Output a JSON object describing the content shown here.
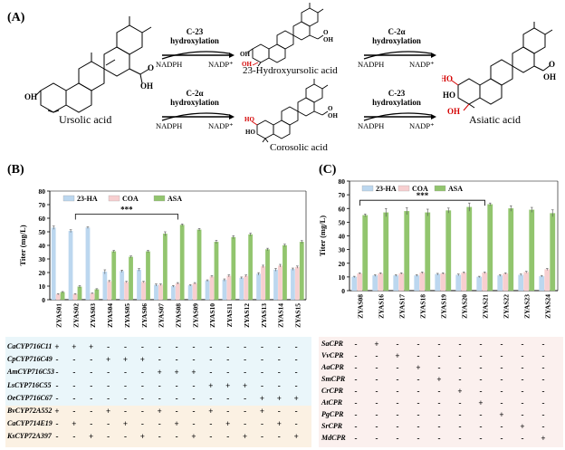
{
  "panel_labels": {
    "a": "(A)",
    "b": "(B)",
    "c": "(C)"
  },
  "scheme": {
    "reactions": [
      {
        "name": "C-23 hydroxylation",
        "line1": "C-23",
        "line2": "hydroxylation",
        "left": "NADPH",
        "right": "NADP⁺"
      },
      {
        "name": "C-2α hydroxylation",
        "line1": "C-2α",
        "line2": "hydroxylation",
        "left": "NADPH",
        "right": "NADP⁺"
      },
      {
        "name": "C-2α hydroxylation",
        "line1": "C-2α",
        "line2": "hydroxylation",
        "left": "NADPH",
        "right": "NADP⁺"
      },
      {
        "name": "C-23 hydroxylation",
        "line1": "C-23",
        "line2": "hydroxylation",
        "left": "NADPH",
        "right": "NADP⁺"
      }
    ],
    "compounds": {
      "ursolic": "Ursolic acid",
      "hydroxy": "23-Hydroxyursolic acid",
      "corosolic": "Corosolic acid",
      "asiatic": "Asiatic acid"
    },
    "groups": {
      "oh": "OH",
      "ho": "HO",
      "o": "O"
    }
  },
  "chart_data": [
    {
      "type": "bar",
      "panel": "(B)",
      "ylabel": "Titer (mg/L)",
      "ylim": [
        0,
        80
      ],
      "yticks": [
        0,
        10,
        20,
        30,
        40,
        50,
        60,
        70,
        80
      ],
      "categories": [
        "ZYAS01",
        "ZYAS02",
        "ZYAS03",
        "ZYAS04",
        "ZYAS05",
        "ZYAS06",
        "ZYAS07",
        "ZYAS08",
        "ZYAS09",
        "ZYAS10",
        "ZYAS11",
        "ZYAS12",
        "ZYAS13",
        "ZYAS14",
        "ZYAS15"
      ],
      "series": [
        {
          "name": "23-HA",
          "color": "#bcd7ef",
          "values": [
            53.0,
            50.5,
            53.0,
            20.5,
            21.0,
            22.0,
            10.8,
            9.8,
            10.5,
            14.0,
            14.5,
            16.0,
            19.0,
            22.0,
            22.5
          ],
          "errors": [
            1.2,
            1.0,
            0.6,
            1.5,
            0.8,
            0.9,
            0.8,
            0.6,
            0.5,
            0.6,
            0.8,
            0.7,
            0.9,
            1.0,
            0.8
          ]
        },
        {
          "name": "COA",
          "color": "#f7cfd0",
          "values": [
            4.0,
            4.0,
            4.5,
            13.5,
            13.0,
            13.0,
            11.0,
            12.0,
            12.0,
            17.0,
            17.5,
            17.5,
            24.5,
            25.0,
            24.0
          ],
          "errors": [
            0.4,
            0.5,
            0.4,
            0.6,
            0.5,
            0.5,
            0.6,
            0.6,
            0.6,
            0.7,
            0.8,
            0.7,
            0.9,
            1.0,
            0.8
          ]
        },
        {
          "name": "ASA",
          "color": "#92c56e",
          "values": [
            5.5,
            9.5,
            7.5,
            35.5,
            31.5,
            35.5,
            48.5,
            55.0,
            51.5,
            42.5,
            46.0,
            48.0,
            37.0,
            40.0,
            42.5
          ],
          "errors": [
            0.5,
            0.8,
            0.6,
            0.8,
            0.7,
            0.8,
            1.5,
            0.8,
            0.9,
            1.2,
            1.1,
            1.0,
            0.9,
            0.9,
            1.0
          ]
        }
      ],
      "significance": {
        "label": "***",
        "from": "ZYAS02",
        "to": "ZYAS08"
      },
      "legend": "top"
    },
    {
      "type": "bar",
      "panel": "(C)",
      "ylabel": "Titer (mg/L)",
      "ylim": [
        0,
        80
      ],
      "yticks": [
        0,
        10,
        20,
        30,
        40,
        50,
        60,
        70,
        80
      ],
      "categories": [
        "ZYAS08",
        "ZYAS16",
        "ZYAS17",
        "ZYAS18",
        "ZYAS19",
        "ZYAS20",
        "ZYAS21",
        "ZYAS22",
        "ZYAS23",
        "ZYAS24"
      ],
      "series": [
        {
          "name": "23-HA",
          "color": "#bcd7ef",
          "values": [
            10.0,
            11.0,
            11.0,
            11.0,
            12.0,
            11.5,
            10.0,
            11.0,
            11.5,
            10.5
          ],
          "errors": [
            0.5,
            0.6,
            0.6,
            0.6,
            0.6,
            0.6,
            0.5,
            0.6,
            0.6,
            0.6
          ]
        },
        {
          "name": "COA",
          "color": "#f7cfd0",
          "values": [
            12.5,
            12.5,
            12.5,
            13.0,
            12.5,
            13.0,
            13.0,
            12.5,
            13.5,
            15.5
          ],
          "errors": [
            0.5,
            0.5,
            0.5,
            0.6,
            0.5,
            0.6,
            0.6,
            0.5,
            0.6,
            0.7
          ]
        },
        {
          "name": "ASA",
          "color": "#92c56e",
          "values": [
            55.0,
            57.0,
            58.0,
            57.0,
            58.5,
            61.0,
            63.0,
            60.0,
            59.0,
            56.5
          ],
          "errors": [
            1.0,
            3.0,
            2.5,
            2.5,
            1.8,
            3.0,
            1.0,
            2.0,
            1.8,
            2.5
          ]
        }
      ],
      "significance": {
        "label": "***",
        "from": "ZYAS08",
        "to": "ZYAS21"
      },
      "legend": "top"
    }
  ],
  "table_b": {
    "rows": [
      {
        "name": "CaCYP716C11",
        "marks": [
          "+",
          "+",
          "+",
          "-",
          "-",
          "-",
          "-",
          "-",
          "-",
          "-",
          "-",
          "-",
          "-",
          "-",
          "-"
        ]
      },
      {
        "name": "CpCYP716C49",
        "marks": [
          "-",
          "-",
          "-",
          "+",
          "+",
          "+",
          "-",
          "-",
          "-",
          "-",
          "-",
          "-",
          "-",
          "-",
          "-"
        ]
      },
      {
        "name": "AmCYP716C53",
        "marks": [
          "-",
          "-",
          "-",
          "-",
          "-",
          "-",
          "+",
          "+",
          "+",
          "-",
          "-",
          "-",
          "-",
          "-",
          "-"
        ]
      },
      {
        "name": "LsCYP716C55",
        "marks": [
          "-",
          "-",
          "-",
          "-",
          "-",
          "-",
          "-",
          "-",
          "-",
          "+",
          "+",
          "+",
          "-",
          "-",
          "-"
        ]
      },
      {
        "name": "OeCYP716C67",
        "marks": [
          "-",
          "-",
          "-",
          "-",
          "-",
          "-",
          "-",
          "-",
          "-",
          "-",
          "-",
          "-",
          "+",
          "+",
          "+"
        ]
      },
      {
        "name": "BvCYP72A552",
        "marks": [
          "+",
          "-",
          "-",
          "+",
          "-",
          "-",
          "+",
          "-",
          "-",
          "+",
          "-",
          "-",
          "+",
          "-",
          "-"
        ]
      },
      {
        "name": "CaCYP714E19",
        "marks": [
          "-",
          "+",
          "-",
          "-",
          "+",
          "-",
          "-",
          "+",
          "-",
          "-",
          "+",
          "-",
          "-",
          "+",
          "-"
        ]
      },
      {
        "name": "KsCYP72A397",
        "marks": [
          "-",
          "-",
          "+",
          "-",
          "-",
          "+",
          "-",
          "-",
          "+",
          "-",
          "-",
          "+",
          "-",
          "-",
          "+"
        ]
      }
    ]
  },
  "table_c": {
    "rows": [
      {
        "name": "SaCPR",
        "marks": [
          "-",
          "+",
          "-",
          "-",
          "-",
          "-",
          "-",
          "-",
          "-",
          "-"
        ]
      },
      {
        "name": "VvCPR",
        "marks": [
          "-",
          "-",
          "+",
          "-",
          "-",
          "-",
          "-",
          "-",
          "-",
          "-"
        ]
      },
      {
        "name": "AaCPR",
        "marks": [
          "-",
          "-",
          "-",
          "+",
          "-",
          "-",
          "-",
          "-",
          "-",
          "-"
        ]
      },
      {
        "name": "SmCPR",
        "marks": [
          "-",
          "-",
          "-",
          "-",
          "+",
          "-",
          "-",
          "-",
          "-",
          "-"
        ]
      },
      {
        "name": "CrCPR",
        "marks": [
          "-",
          "-",
          "-",
          "-",
          "-",
          "+",
          "-",
          "-",
          "-",
          "-"
        ]
      },
      {
        "name": "AtCPR",
        "marks": [
          "-",
          "-",
          "-",
          "-",
          "-",
          "-",
          "+",
          "-",
          "-",
          "-"
        ]
      },
      {
        "name": "PgCPR",
        "marks": [
          "-",
          "-",
          "-",
          "-",
          "-",
          "-",
          "-",
          "+",
          "-",
          "-"
        ]
      },
      {
        "name": "SrCPR",
        "marks": [
          "-",
          "-",
          "-",
          "-",
          "-",
          "-",
          "-",
          "-",
          "+",
          "-"
        ]
      },
      {
        "name": "MdCPR",
        "marks": [
          "-",
          "-",
          "-",
          "-",
          "-",
          "-",
          "-",
          "-",
          "-",
          "+"
        ]
      }
    ]
  }
}
